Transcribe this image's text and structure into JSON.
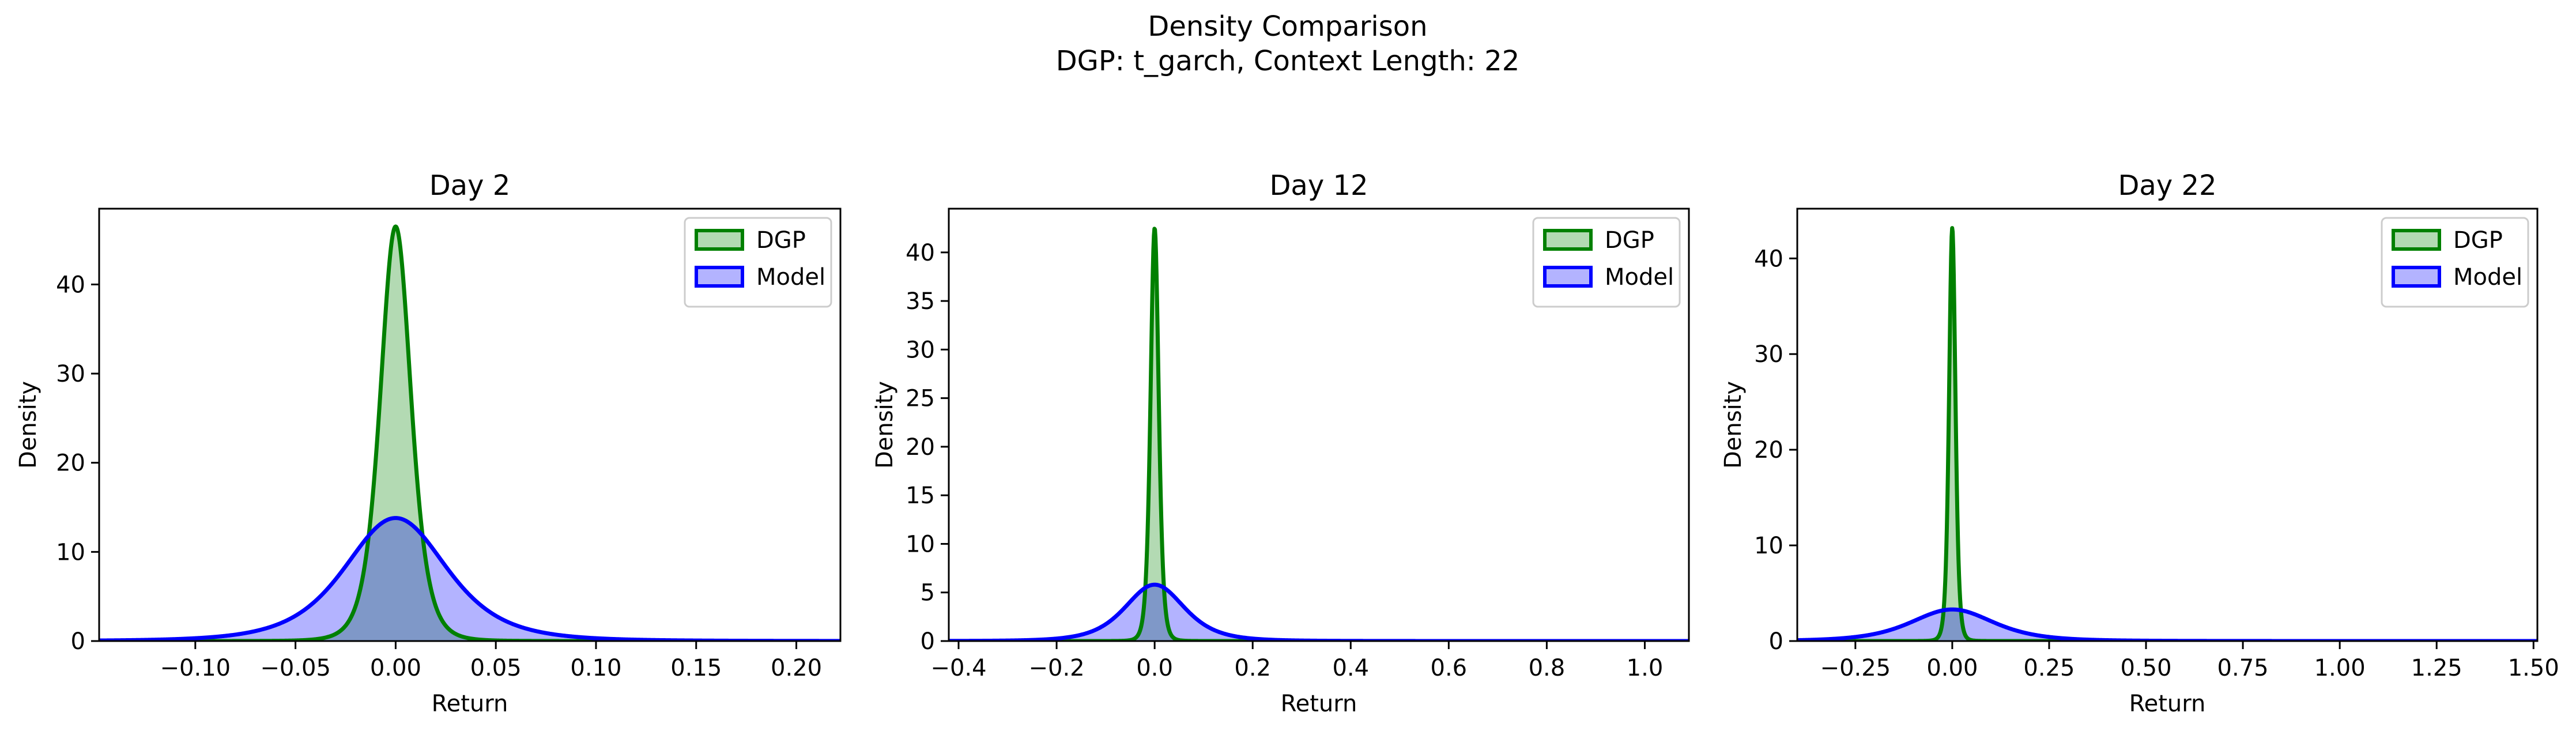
{
  "figure": {
    "title": "Density Comparison",
    "subtitle": "DGP: t_garch, Context Length: 22"
  },
  "colors": {
    "dgp_line": "#008000",
    "dgp_fill": "#b3dab3",
    "model_line": "#0000ff",
    "model_fill": "#b3b3ff",
    "overlap_fill": "#7f98c8",
    "axis": "#000000"
  },
  "chart_data": [
    {
      "type": "area",
      "title": "Day 2",
      "xlabel": "Return",
      "ylabel": "Density",
      "xlim": [
        -0.148,
        0.222
      ],
      "ylim": [
        0,
        48.5
      ],
      "xticks": [
        -0.1,
        -0.05,
        0.0,
        0.05,
        0.1,
        0.15,
        0.2
      ],
      "xtick_labels": [
        "−0.10",
        "−0.05",
        "0.00",
        "0.05",
        "0.10",
        "0.15",
        "0.20"
      ],
      "yticks": [
        0,
        10,
        20,
        30,
        40
      ],
      "ytick_labels": [
        "0",
        "10",
        "20",
        "30",
        "40"
      ],
      "legend": {
        "placement": "upper-right",
        "entries": [
          "DGP",
          "Model"
        ]
      },
      "series": [
        {
          "name": "DGP",
          "peak_x": 0.0,
          "peak_density": 46.5,
          "shape": "t",
          "df": 5,
          "scale": 0.0079
        },
        {
          "name": "Model",
          "peak_x": 0.0,
          "peak_density": 13.8,
          "shape": "t",
          "df": 4,
          "scale": 0.0266
        }
      ]
    },
    {
      "type": "area",
      "title": "Day 12",
      "xlabel": "Return",
      "ylabel": "Density",
      "xlim": [
        -0.42,
        1.09
      ],
      "ylim": [
        0,
        44.5
      ],
      "xticks": [
        -0.4,
        -0.2,
        0.0,
        0.2,
        0.4,
        0.6,
        0.8,
        1.0
      ],
      "xtick_labels": [
        "−0.4",
        "−0.2",
        "0.0",
        "0.2",
        "0.4",
        "0.6",
        "0.8",
        "1.0"
      ],
      "yticks": [
        0,
        5,
        10,
        15,
        20,
        25,
        30,
        35,
        40
      ],
      "ytick_labels": [
        "0",
        "5",
        "10",
        "15",
        "20",
        "25",
        "30",
        "35",
        "40"
      ],
      "legend": {
        "placement": "upper-right",
        "entries": [
          "DGP",
          "Model"
        ]
      },
      "series": [
        {
          "name": "DGP",
          "peak_x": 0.0,
          "peak_density": 42.5,
          "shape": "t",
          "df": 5,
          "scale": 0.0086
        },
        {
          "name": "Model",
          "peak_x": 0.0,
          "peak_density": 5.8,
          "shape": "t",
          "df": 4,
          "scale": 0.0633
        }
      ]
    },
    {
      "type": "area",
      "title": "Day 22",
      "xlabel": "Return",
      "ylabel": "Density",
      "xlim": [
        -0.4,
        1.51
      ],
      "ylim": [
        0,
        45.2
      ],
      "xticks": [
        -0.25,
        0.0,
        0.25,
        0.5,
        0.75,
        1.0,
        1.25,
        1.5
      ],
      "xtick_labels": [
        "−0.25",
        "0.00",
        "0.25",
        "0.50",
        "0.75",
        "1.00",
        "1.25",
        "1.50"
      ],
      "yticks": [
        0,
        10,
        20,
        30,
        40
      ],
      "ytick_labels": [
        "0",
        "10",
        "20",
        "30",
        "40"
      ],
      "legend": {
        "placement": "upper-right",
        "entries": [
          "DGP",
          "Model"
        ]
      },
      "series": [
        {
          "name": "DGP",
          "peak_x": 0.0,
          "peak_density": 43.2,
          "shape": "t",
          "df": 5,
          "scale": 0.0085
        },
        {
          "name": "Model",
          "peak_x": 0.0,
          "peak_density": 3.3,
          "shape": "t",
          "df": 4,
          "scale": 0.111
        }
      ]
    }
  ]
}
